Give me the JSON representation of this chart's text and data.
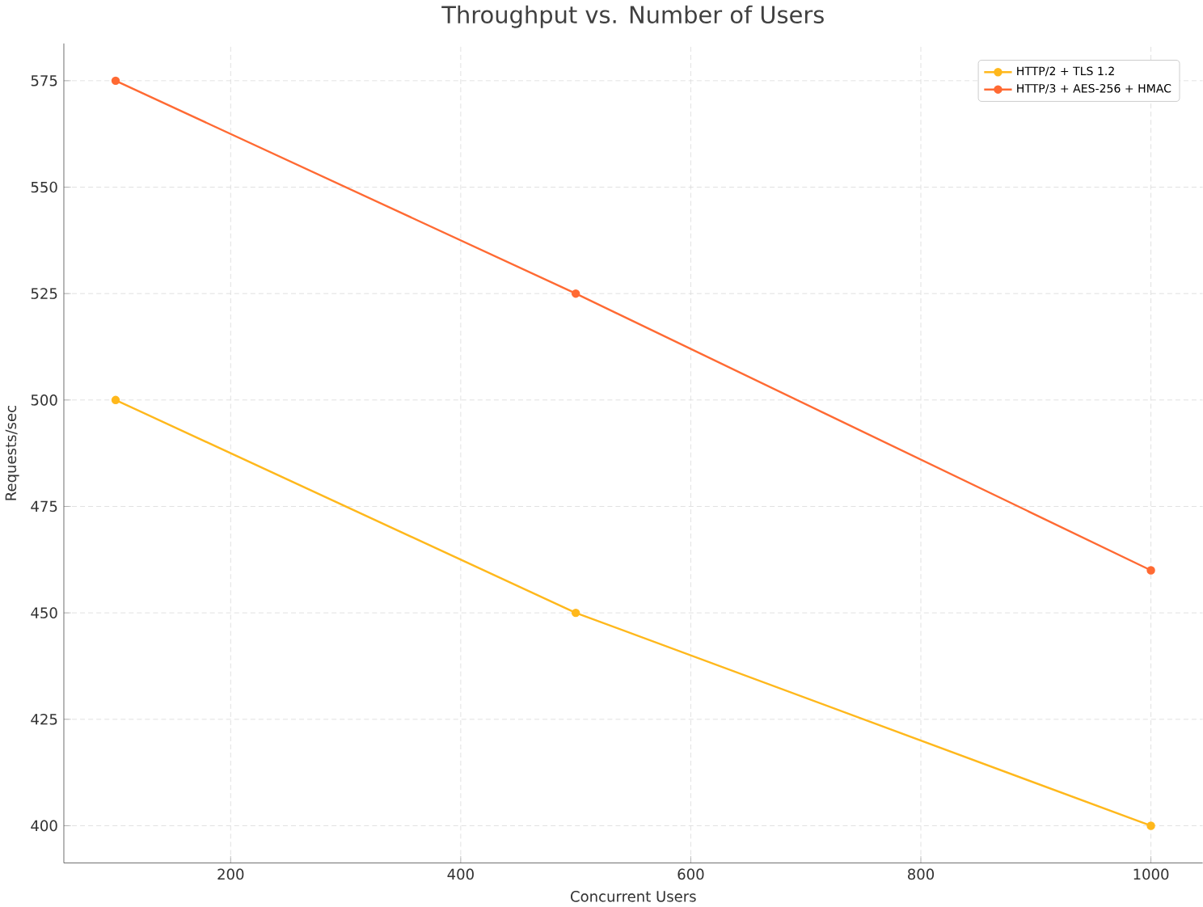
{
  "chart_data": {
    "type": "line",
    "title": "Throughput vs. Number of Users",
    "xlabel": "Concurrent Users",
    "ylabel": "Requests/sec",
    "x": [
      100,
      500,
      1000
    ],
    "series": [
      {
        "name": "HTTP/2 + TLS 1.2",
        "color": "#ffb81c",
        "values": [
          500,
          450,
          400
        ]
      },
      {
        "name": "HTTP/3 + AES-256 + HMAC",
        "color": "#ff6a33",
        "values": [
          575,
          525,
          460
        ]
      }
    ],
    "xlim": [
      55,
      1045
    ],
    "ylim": [
      391.25,
      583.75
    ],
    "xticks": [
      200,
      400,
      600,
      800,
      1000
    ],
    "yticks": [
      400,
      425,
      450,
      475,
      500,
      525,
      550,
      575
    ],
    "grid": true,
    "legend": "top right",
    "marker": "circle",
    "line_style": "solid"
  }
}
